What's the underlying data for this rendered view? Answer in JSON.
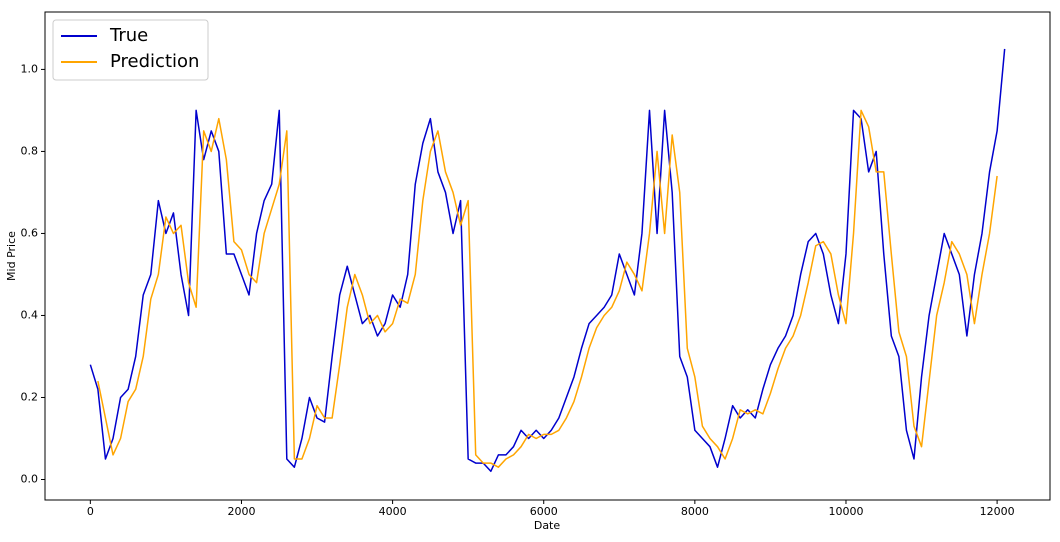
{
  "chart_data": {
    "type": "line",
    "xlabel": "Date",
    "ylabel": "Mid Price",
    "x": [
      0,
      100,
      200,
      300,
      400,
      500,
      600,
      700,
      800,
      900,
      1000,
      1100,
      1200,
      1300,
      1400,
      1500,
      1600,
      1700,
      1800,
      1900,
      2000,
      2100,
      2200,
      2300,
      2400,
      2500,
      2600,
      2700,
      2800,
      2900,
      3000,
      3100,
      3200,
      3300,
      3400,
      3500,
      3600,
      3700,
      3800,
      3900,
      4000,
      4100,
      4200,
      4300,
      4400,
      4500,
      4600,
      4700,
      4800,
      4900,
      5000,
      5100,
      5200,
      5300,
      5400,
      5500,
      5600,
      5700,
      5800,
      5900,
      6000,
      6100,
      6200,
      6300,
      6400,
      6500,
      6600,
      6700,
      6800,
      6900,
      7000,
      7100,
      7200,
      7300,
      7400,
      7500,
      7600,
      7700,
      7800,
      7900,
      8000,
      8100,
      8200,
      8300,
      8400,
      8500,
      8600,
      8700,
      8800,
      8900,
      9000,
      9100,
      9200,
      9300,
      9400,
      9500,
      9600,
      9700,
      9800,
      9900,
      10000,
      10100,
      10200,
      10300,
      10400,
      10500,
      10600,
      10700,
      10800,
      10900,
      11000,
      11100,
      11200,
      11300,
      11400,
      11500,
      11600,
      11700,
      11800,
      11900,
      12000,
      12100
    ],
    "series": [
      {
        "name": "True",
        "color": "#0000cd",
        "values": [
          0.28,
          0.22,
          0.05,
          0.1,
          0.2,
          0.22,
          0.3,
          0.45,
          0.5,
          0.68,
          0.6,
          0.65,
          0.5,
          0.4,
          0.9,
          0.78,
          0.85,
          0.8,
          0.55,
          0.55,
          0.5,
          0.45,
          0.6,
          0.68,
          0.72,
          0.9,
          0.05,
          0.03,
          0.1,
          0.2,
          0.15,
          0.14,
          0.3,
          0.45,
          0.52,
          0.45,
          0.38,
          0.4,
          0.35,
          0.38,
          0.45,
          0.42,
          0.5,
          0.72,
          0.82,
          0.88,
          0.75,
          0.7,
          0.6,
          0.68,
          0.05,
          0.04,
          0.04,
          0.02,
          0.06,
          0.06,
          0.08,
          0.12,
          0.1,
          0.12,
          0.1,
          0.12,
          0.15,
          0.2,
          0.25,
          0.32,
          0.38,
          0.4,
          0.42,
          0.45,
          0.55,
          0.5,
          0.45,
          0.6,
          0.9,
          0.6,
          0.9,
          0.7,
          0.3,
          0.25,
          0.12,
          0.1,
          0.08,
          0.03,
          0.1,
          0.18,
          0.15,
          0.17,
          0.15,
          0.22,
          0.28,
          0.32,
          0.35,
          0.4,
          0.5,
          0.58,
          0.6,
          0.55,
          0.45,
          0.38,
          0.55,
          0.9,
          0.88,
          0.75,
          0.8,
          0.55,
          0.35,
          0.3,
          0.12,
          0.05,
          0.25,
          0.4,
          0.5,
          0.6,
          0.55,
          0.5,
          0.35,
          0.5,
          0.6,
          0.75,
          0.85,
          1.05
        ]
      },
      {
        "name": "Prediction",
        "color": "#ffa500",
        "values": [
          null,
          0.24,
          0.15,
          0.06,
          0.1,
          0.19,
          0.22,
          0.3,
          0.44,
          0.5,
          0.64,
          0.6,
          0.62,
          0.48,
          0.42,
          0.85,
          0.8,
          0.88,
          0.78,
          0.58,
          0.56,
          0.5,
          0.48,
          0.6,
          0.66,
          0.72,
          0.85,
          0.05,
          0.05,
          0.1,
          0.18,
          0.15,
          0.15,
          0.28,
          0.42,
          0.5,
          0.45,
          0.38,
          0.4,
          0.36,
          0.38,
          0.44,
          0.43,
          0.5,
          0.68,
          0.8,
          0.85,
          0.75,
          0.7,
          0.62,
          0.68,
          0.06,
          0.04,
          0.04,
          0.03,
          0.05,
          0.06,
          0.08,
          0.11,
          0.1,
          0.11,
          0.11,
          0.12,
          0.15,
          0.19,
          0.25,
          0.32,
          0.37,
          0.4,
          0.42,
          0.46,
          0.53,
          0.5,
          0.46,
          0.6,
          0.8,
          0.6,
          0.84,
          0.7,
          0.32,
          0.25,
          0.13,
          0.1,
          0.08,
          0.05,
          0.1,
          0.17,
          0.16,
          0.17,
          0.16,
          0.21,
          0.27,
          0.32,
          0.35,
          0.4,
          0.48,
          0.57,
          0.58,
          0.55,
          0.45,
          0.38,
          0.6,
          0.9,
          0.86,
          0.75,
          0.75,
          0.55,
          0.36,
          0.3,
          0.13,
          0.08,
          0.24,
          0.4,
          0.48,
          0.58,
          0.55,
          0.5,
          0.38,
          0.5,
          0.6,
          0.74,
          null
        ]
      }
    ],
    "xlim": [
      -600,
      12700
    ],
    "ylim": [
      -0.05,
      1.14
    ],
    "xticks": [
      0,
      2000,
      4000,
      6000,
      8000,
      10000,
      12000
    ],
    "yticks": [
      {
        "value": 0,
        "label": "0.0"
      },
      0.2,
      0.4,
      0.6,
      0.8,
      {
        "value": 1,
        "label": "1.0"
      }
    ],
    "legend": "upper left"
  }
}
